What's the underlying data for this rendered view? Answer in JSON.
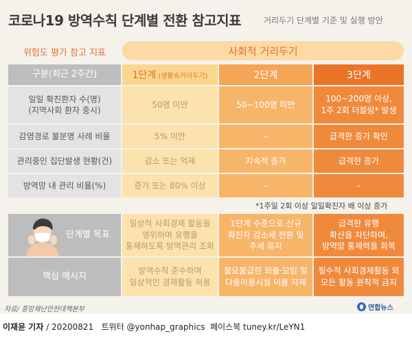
{
  "title": "코로나19 방역수칙 단계별 전환 참고지표",
  "subtitle": "거리두기 단계별 기준 및 실행 방안",
  "risk_header": "위험도 평가 참고 지표",
  "social_header": "사회적 거리두기",
  "table": {
    "category_header": "구분(최근 2주간)",
    "levels": [
      {
        "label": "1단계",
        "sub": "(생활속거리두기)"
      },
      {
        "label": "2단계",
        "sub": ""
      },
      {
        "label": "3단계",
        "sub": ""
      }
    ],
    "rows": [
      {
        "label": "일일 확진환자 수(명)\n(지역사회 환자 중시)",
        "values": [
          "50명 미만",
          "50~100명 미만",
          "100~200명 이상,\n1주 2회 더블링* 발생"
        ]
      },
      {
        "label": "감염경로 불분명 사례 비율",
        "values": [
          "5% 미만",
          "–",
          "급격한 증가 확인"
        ]
      },
      {
        "label": "관리중인 집단발생 현황(건)",
        "values": [
          "감소 또는 억제",
          "지속적 증가",
          "급격한 증가"
        ]
      },
      {
        "label": "방역망 내 관리 비율(%)",
        "values": [
          "증가 또는 80% 이상",
          "–",
          "–"
        ]
      }
    ],
    "footnote": "*1주일 2회 이상 일일확진자 배 이상 증가",
    "lower_rows": [
      {
        "label": "단계별 목표",
        "values": [
          "일상적 사회경제 활동을\n영위하며 유행을\n통제하도록 방역관리 조화",
          "1단계 수준으로 신규\n확진자 감소세 전환 및\n추세 유지",
          "급격한 유행\n확산을 차단하며,\n방역망 통제력을 회복"
        ]
      },
      {
        "label": "핵심 메시지",
        "values": [
          "방역수칙 준수하며\n일상적인 경제활동 허용",
          "불요불급한 외출·모임 및\n다중이용시설 이용 자제",
          "필수적 사회경제활동 외\n모든 활동 원칙적 금지"
        ]
      }
    ]
  },
  "source": "자료/ 중앙재난안전대책본부",
  "logo": "연합뉴스",
  "credit": {
    "author": "이재윤 기자",
    "rest": " / 20200821   트위터 @yonhap_graphics  페이스북 tuney.kr/LeYN1"
  },
  "colors": {
    "level1": "#fce3ad",
    "level2": "#f7b56a",
    "level3": "#ef8a3c",
    "accent": "#e0722f"
  }
}
